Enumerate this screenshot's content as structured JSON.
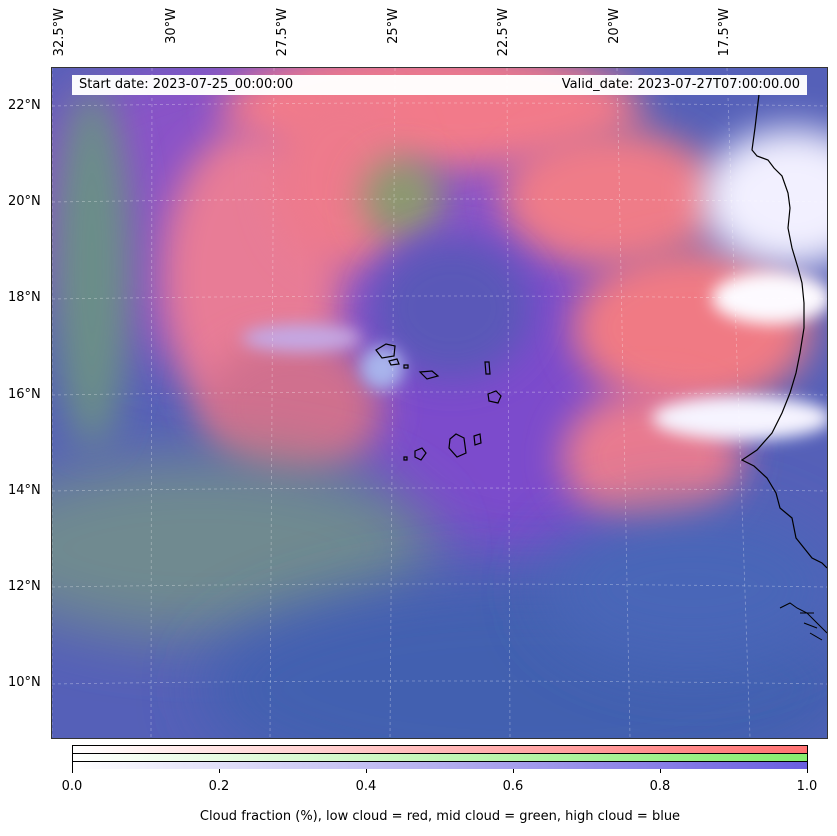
{
  "map": {
    "lon_labels": [
      "32.5°W",
      "30°W",
      "27.5°W",
      "25°W",
      "22.5°W",
      "20°W",
      "17.5°W"
    ],
    "lat_labels": [
      "22°N",
      "20°N",
      "18°N",
      "16°N",
      "14°N",
      "12°N",
      "10°N"
    ],
    "lon_range": [
      -32.5,
      -15.0
    ],
    "lat_range": [
      8.9,
      22.8
    ],
    "gridlines": true
  },
  "info": {
    "start_date": "Start date: 2023-07-25_00:00:00",
    "valid_date": "Valid_date: 2023-07-27T07:00:00.00"
  },
  "colorbar": {
    "ticks": [
      "0.0",
      "0.2",
      "0.4",
      "0.6",
      "0.8",
      "1.0"
    ],
    "label": "Cloud fraction (%), low cloud = red, mid cloud = green, high cloud = blue",
    "colors": {
      "low": "#ff7272",
      "mid": "#86ee6e",
      "high": "#6a5ee0"
    }
  }
}
